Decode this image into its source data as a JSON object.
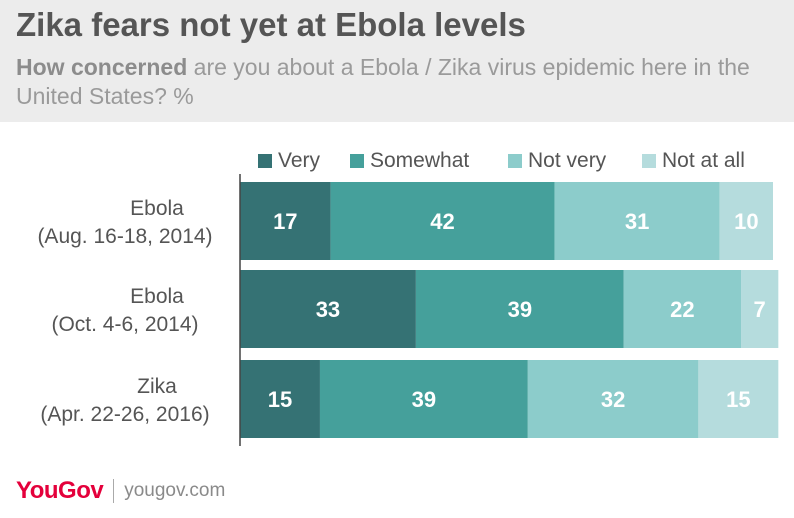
{
  "header": {
    "title": "Zika fears not yet at Ebola levels",
    "subtitle_bold": "How concerned",
    "subtitle_rest": " are you about a Ebola / Zika virus epidemic here in the United States? %"
  },
  "chart_data": {
    "type": "bar",
    "orientation": "horizontal",
    "stacked": true,
    "title": "Zika fears not yet at Ebola levels",
    "ylabel": "",
    "xlabel": "",
    "categories": [
      [
        "Ebola",
        "(Aug. 16-18, 2014)"
      ],
      [
        "Ebola",
        "(Oct. 4-6, 2014)"
      ],
      [
        "Zika",
        "(Apr. 22-26, 2016)"
      ]
    ],
    "series": [
      {
        "name": "Very",
        "color": "#357274",
        "values": [
          17,
          33,
          15
        ]
      },
      {
        "name": "Somewhat",
        "color": "#45a09b",
        "values": [
          42,
          39,
          39
        ]
      },
      {
        "name": "Not very",
        "color": "#8ccccb",
        "values": [
          31,
          22,
          32
        ]
      },
      {
        "name": "Not at all",
        "color": "#b5dcdd",
        "values": [
          10,
          7,
          15
        ]
      }
    ],
    "xlim": [
      0,
      100
    ],
    "legend_position": "top",
    "grid": false
  },
  "footer": {
    "logo": "YouGov",
    "site": "yougov.com"
  }
}
